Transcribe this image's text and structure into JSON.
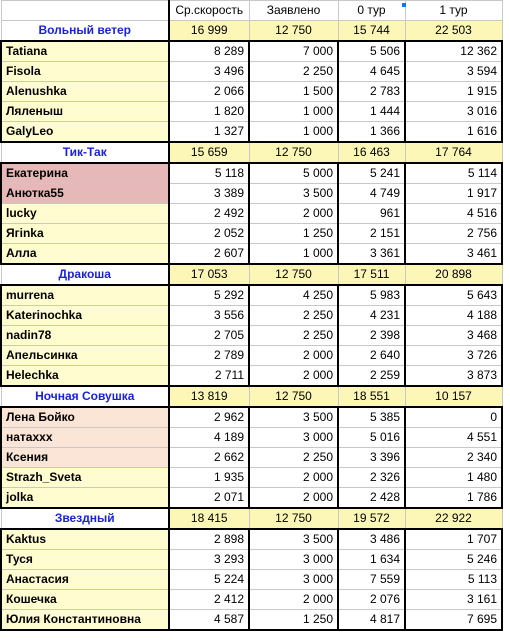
{
  "headers": [
    "",
    "Ср.скорость",
    "Заявлено",
    "0 тур",
    "1 тур"
  ],
  "groups": [
    {
      "team": "Вольный ветер",
      "totals": [
        "16 999",
        "12 750",
        "15 744",
        "22 503"
      ],
      "highlight": "",
      "rows": [
        {
          "name": "Tatiana",
          "values": [
            "8 289",
            "7 000",
            "5 506",
            "12 362"
          ],
          "shade": ""
        },
        {
          "name": "Fisola",
          "values": [
            "3 496",
            "2 250",
            "4 645",
            "3 594"
          ],
          "shade": ""
        },
        {
          "name": "Alenushka",
          "values": [
            "2 066",
            "1 500",
            "2 783",
            "1 915"
          ],
          "shade": ""
        },
        {
          "name": "Ляленыш",
          "values": [
            "1 820",
            "1 000",
            "1 444",
            "3 016"
          ],
          "shade": ""
        },
        {
          "name": "GalyLeo",
          "values": [
            "1 327",
            "1 000",
            "1 366",
            "1 616"
          ],
          "shade": ""
        }
      ]
    },
    {
      "team": "Тик-Так",
      "totals": [
        "15 659",
        "12 750",
        "16 463",
        "17 764"
      ],
      "rows": [
        {
          "name": "Екатерина",
          "values": [
            "5 118",
            "5 000",
            "5 241",
            "5 114"
          ],
          "shade": "pink"
        },
        {
          "name": "Анютка55",
          "values": [
            "3 389",
            "3 500",
            "4 749",
            "1 917"
          ],
          "shade": "pink"
        },
        {
          "name": "lucky",
          "values": [
            "2 492",
            "2 000",
            "961",
            "4 516"
          ],
          "shade": ""
        },
        {
          "name": "Ягinka",
          "values": [
            "2 052",
            "1 250",
            "2 151",
            "2 756"
          ],
          "shade": ""
        },
        {
          "name": "Алла",
          "values": [
            "2 607",
            "1 000",
            "3 361",
            "3 461"
          ],
          "shade": ""
        }
      ]
    },
    {
      "team": "Дракоша",
      "totals": [
        "17 053",
        "12 750",
        "17 511",
        "20 898"
      ],
      "rows": [
        {
          "name": "murrena",
          "values": [
            "5 292",
            "4 250",
            "5 983",
            "5 643"
          ],
          "shade": ""
        },
        {
          "name": "Katerinochka",
          "values": [
            "3 556",
            "2 250",
            "4 231",
            "4 188"
          ],
          "shade": ""
        },
        {
          "name": "nadin78",
          "values": [
            "2 705",
            "2 250",
            "2 398",
            "3 468"
          ],
          "shade": ""
        },
        {
          "name": "Апельсинка",
          "values": [
            "2 789",
            "2 000",
            "2 640",
            "3 726"
          ],
          "shade": ""
        },
        {
          "name": "Helechka",
          "values": [
            "2 711",
            "2 000",
            "2 259",
            "3 873"
          ],
          "shade": ""
        }
      ]
    },
    {
      "team": "Ночная Совушка",
      "totals": [
        "13 819",
        "12 750",
        "18 551",
        "10 157"
      ],
      "rows": [
        {
          "name": "Лена Бойко",
          "values": [
            "2 962",
            "3 500",
            "5 385",
            "0"
          ],
          "shade": "peach"
        },
        {
          "name": "натаххх",
          "values": [
            "4 189",
            "3 000",
            "5 016",
            "4 551"
          ],
          "shade": "peach"
        },
        {
          "name": "Ксения",
          "values": [
            "2 662",
            "2 250",
            "3 396",
            "2 340"
          ],
          "shade": "peach"
        },
        {
          "name": "Strazh_Sveta",
          "values": [
            "1 935",
            "2 000",
            "2 326",
            "1 480"
          ],
          "shade": ""
        },
        {
          "name": "jolka",
          "values": [
            "2 071",
            "2 000",
            "2 428",
            "1 786"
          ],
          "shade": ""
        }
      ]
    },
    {
      "team": "Звездный",
      "totals": [
        "18 415",
        "12 750",
        "19 572",
        "22 922"
      ],
      "rows": [
        {
          "name": "Kaktus",
          "values": [
            "2 898",
            "3 500",
            "3 486",
            "1 707"
          ],
          "shade": ""
        },
        {
          "name": "Туся",
          "values": [
            "3 293",
            "3 000",
            "1 634",
            "5 246"
          ],
          "shade": ""
        },
        {
          "name": "Анастасия",
          "values": [
            "5 224",
            "3 000",
            "7 559",
            "5 113"
          ],
          "shade": ""
        },
        {
          "name": "Кошечка",
          "values": [
            "2 412",
            "2 000",
            "2 076",
            "3 161"
          ],
          "shade": ""
        },
        {
          "name": "Юлия Константиновна",
          "values": [
            "4 587",
            "1 250",
            "4 817",
            "7 695"
          ],
          "shade": ""
        }
      ]
    }
  ]
}
